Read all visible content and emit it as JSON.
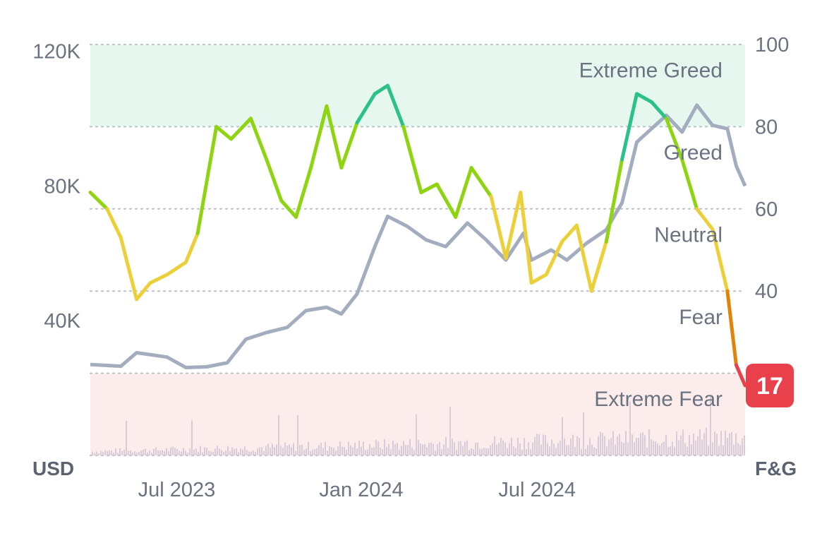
{
  "chart_data": {
    "type": "line",
    "title": "",
    "left_axis": {
      "unit_label": "USD",
      "ticks": [
        "120K",
        "80K",
        "40K"
      ],
      "tick_values": [
        120000,
        80000,
        40000
      ],
      "range": [
        0,
        122000
      ]
    },
    "right_axis": {
      "unit_label": "F&G",
      "ticks": [
        "100",
        "80",
        "60",
        "40"
      ],
      "tick_values": [
        100,
        80,
        60,
        40
      ],
      "range": [
        0,
        100
      ]
    },
    "x_axis": {
      "ticks": [
        "Jul 2023",
        "Jan 2024",
        "Jul 2024"
      ],
      "tick_dates": [
        "2023-07-01",
        "2024-01-01",
        "2024-07-01"
      ],
      "range": [
        "2023-05-15",
        "2025-03-10"
      ]
    },
    "zones": [
      {
        "label": "Extreme Greed",
        "from": 80,
        "to": 100,
        "color": "#e6f7f0"
      },
      {
        "label": "Greed",
        "from": 60,
        "to": 80
      },
      {
        "label": "Neutral",
        "from": 40,
        "to": 60
      },
      {
        "label": "Fear",
        "from": 20,
        "to": 40
      },
      {
        "label": "Extreme Fear",
        "from": 0,
        "to": 20,
        "color": "#fdecec"
      }
    ],
    "current_value": "17",
    "colors": {
      "price": "#a3adbf",
      "volume": "#d8ccd8",
      "extreme_greed": "#2bc28a",
      "greed": "#8fd410",
      "neutral": "#ecd03a",
      "fear": "#e2840c",
      "extreme_fear": "#e8414c",
      "badge": "#e8414c",
      "grid": "#b9bdc6"
    },
    "series": [
      {
        "name": "F&G",
        "x": [
          "2023-05-15",
          "2023-06-01",
          "2023-06-15",
          "2023-07-01",
          "2023-07-15",
          "2023-08-01",
          "2023-08-20",
          "2023-09-01",
          "2023-09-20",
          "2023-10-05",
          "2023-10-25",
          "2023-11-10",
          "2023-11-25",
          "2023-12-10",
          "2023-12-25",
          "2024-01-10",
          "2024-01-25",
          "2024-02-10",
          "2024-02-28",
          "2024-03-12",
          "2024-03-28",
          "2024-04-15",
          "2024-05-01",
          "2024-05-20",
          "2024-06-05",
          "2024-06-25",
          "2024-07-10",
          "2024-07-25",
          "2024-08-05",
          "2024-08-20",
          "2024-09-05",
          "2024-09-20",
          "2024-10-05",
          "2024-10-20",
          "2024-11-05",
          "2024-11-20",
          "2024-12-05",
          "2024-12-20",
          "2025-01-05",
          "2025-01-20",
          "2025-02-05",
          "2025-02-20",
          "2025-03-01",
          "2025-03-10"
        ],
        "values": [
          64,
          60,
          53,
          38,
          42,
          44,
          47,
          54,
          80,
          77,
          82,
          72,
          62,
          58,
          70,
          85,
          70,
          81,
          88,
          90,
          80,
          64,
          66,
          58,
          70,
          63,
          48,
          64,
          42,
          44,
          52,
          56,
          40,
          52,
          72,
          88,
          86,
          82,
          72,
          60,
          55,
          40,
          22,
          17
        ]
      },
      {
        "name": "USD",
        "x": [
          "2023-05-15",
          "2023-06-15",
          "2023-07-01",
          "2023-08-01",
          "2023-08-20",
          "2023-09-10",
          "2023-10-01",
          "2023-10-20",
          "2023-11-10",
          "2023-12-01",
          "2023-12-20",
          "2024-01-10",
          "2024-01-25",
          "2024-02-10",
          "2024-02-28",
          "2024-03-12",
          "2024-04-01",
          "2024-04-20",
          "2024-05-10",
          "2024-06-01",
          "2024-06-20",
          "2024-07-10",
          "2024-07-28",
          "2024-08-05",
          "2024-08-25",
          "2024-09-10",
          "2024-09-30",
          "2024-10-20",
          "2024-11-05",
          "2024-11-20",
          "2024-12-05",
          "2024-12-20",
          "2025-01-05",
          "2025-01-20",
          "2025-02-05",
          "2025-02-20",
          "2025-03-01",
          "2025-03-10"
        ],
        "values": [
          27000,
          26500,
          30500,
          29200,
          26100,
          26300,
          27500,
          34500,
          36500,
          38000,
          43000,
          44000,
          42000,
          48000,
          62000,
          71000,
          68000,
          64000,
          62000,
          69000,
          64000,
          58000,
          66000,
          58000,
          61000,
          58000,
          63000,
          67000,
          75000,
          93000,
          97000,
          101000,
          96000,
          104000,
          98000,
          97000,
          86000,
          80000
        ]
      }
    ],
    "volume_description_visible": false
  }
}
